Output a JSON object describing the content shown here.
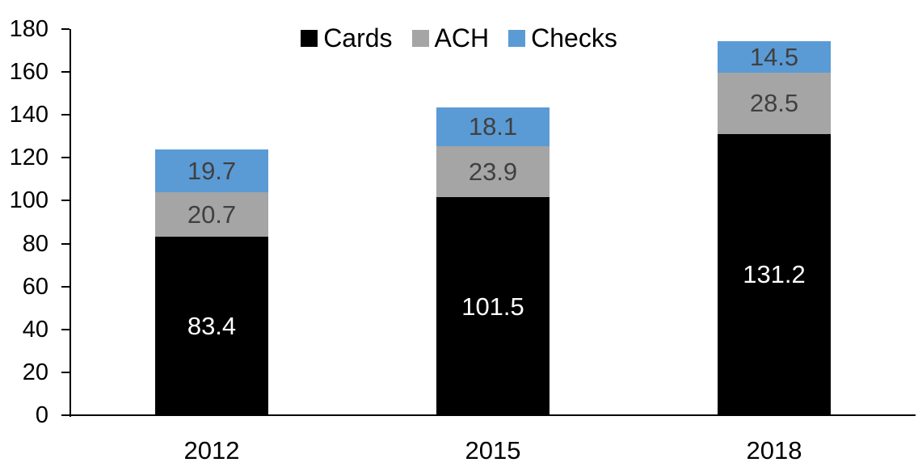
{
  "chart_data": {
    "type": "bar",
    "stacked": true,
    "title": "",
    "xlabel": "",
    "ylabel": "",
    "categories": [
      "2012",
      "2015",
      "2018"
    ],
    "series": [
      {
        "name": "Cards",
        "color": "#000000",
        "label_color": "#ffffff",
        "values": [
          83.4,
          101.5,
          131.2
        ]
      },
      {
        "name": "ACH",
        "color": "#a5a5a5",
        "label_color": "#404040",
        "values": [
          20.7,
          23.9,
          28.5
        ]
      },
      {
        "name": "Checks",
        "color": "#5b9bd5",
        "label_color": "#404040",
        "values": [
          19.7,
          18.1,
          14.5
        ]
      }
    ],
    "ylim": [
      0,
      180
    ],
    "ytick_step": 20,
    "ytick_labels": [
      "0",
      "20",
      "40",
      "60",
      "80",
      "100",
      "120",
      "140",
      "160",
      "180"
    ],
    "legend_position": "top-center",
    "legend_entries": [
      "Cards",
      "ACH",
      "Checks"
    ],
    "data_labels": true,
    "data_label_decimals": 1,
    "grid": false,
    "axis_color": "#000000",
    "background_color": "#ffffff"
  }
}
